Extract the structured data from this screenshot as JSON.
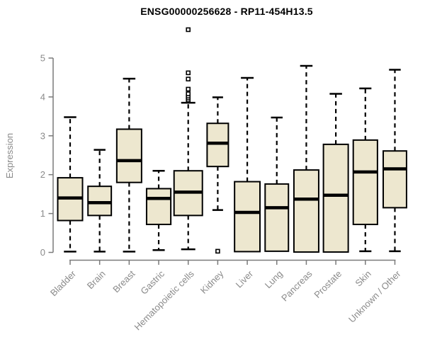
{
  "title": "ENSG00000256628 - RP11-454H13.5",
  "style": {
    "box_fill": "#EDE7CF",
    "box_stroke": "#000000",
    "median_color": "#000000",
    "whisker_color": "#000000",
    "axis_color": "#7a7a7a",
    "tick_label_color": "#8a8a8a",
    "title_color": "#000000",
    "background": "#ffffff"
  },
  "chart_data": {
    "type": "boxplot",
    "title": "ENSG00000256628 - RP11-454H13.5",
    "xlabel": "",
    "ylabel": "Expression",
    "ylim": [
      0,
      5
    ],
    "yticks": [
      0,
      1,
      2,
      3,
      4,
      5
    ],
    "grid": false,
    "legend": null,
    "categories": [
      "Bladder",
      "Brain",
      "Breast",
      "Gastric",
      "Hematopoietic cells",
      "Kidney",
      "Liver",
      "Lung",
      "Pancreas",
      "Prostate",
      "Skin",
      "Unknown / Other"
    ],
    "series": [
      {
        "name": "Bladder",
        "whisker_low": 0.02,
        "q1": 0.82,
        "median": 1.4,
        "q3": 1.92,
        "whisker_high": 3.48,
        "outliers": [],
        "box_width_ratio": 0.84
      },
      {
        "name": "Brain",
        "whisker_low": 0.02,
        "q1": 0.95,
        "median": 1.28,
        "q3": 1.7,
        "whisker_high": 2.64,
        "outliers": [],
        "box_width_ratio": 0.79
      },
      {
        "name": "Breast",
        "whisker_low": 0.02,
        "q1": 1.8,
        "median": 2.36,
        "q3": 3.17,
        "whisker_high": 4.47,
        "outliers": [],
        "box_width_ratio": 0.84
      },
      {
        "name": "Gastric",
        "whisker_low": 0.06,
        "q1": 0.72,
        "median": 1.39,
        "q3": 1.64,
        "whisker_high": 2.1,
        "outliers": [],
        "box_width_ratio": 0.82
      },
      {
        "name": "Hematopoietic cells",
        "whisker_low": 0.08,
        "q1": 0.95,
        "median": 1.55,
        "q3": 2.1,
        "whisker_high": 3.85,
        "outliers": [
          3.92,
          3.97,
          4.02,
          4.08,
          4.2,
          4.46,
          4.62,
          5.73
        ],
        "box_width_ratio": 0.96
      },
      {
        "name": "Kidney",
        "whisker_low": 1.09,
        "q1": 2.21,
        "median": 2.81,
        "q3": 3.32,
        "whisker_high": 3.99,
        "outliers": [
          0.03
        ],
        "box_width_ratio": 0.72
      },
      {
        "name": "Liver",
        "whisker_low": 0.02,
        "q1": 0.02,
        "median": 1.03,
        "q3": 1.82,
        "whisker_high": 4.49,
        "outliers": [],
        "box_width_ratio": 0.86
      },
      {
        "name": "Lung",
        "whisker_low": 0.03,
        "q1": 0.03,
        "median": 1.15,
        "q3": 1.76,
        "whisker_high": 3.47,
        "outliers": [],
        "box_width_ratio": 0.79
      },
      {
        "name": "Pancreas",
        "whisker_low": 0.01,
        "q1": 0.01,
        "median": 1.37,
        "q3": 2.12,
        "whisker_high": 4.8,
        "outliers": [],
        "box_width_ratio": 0.84
      },
      {
        "name": "Prostate",
        "whisker_low": 0.01,
        "q1": 0.01,
        "median": 1.47,
        "q3": 2.78,
        "whisker_high": 4.08,
        "outliers": [],
        "box_width_ratio": 0.84
      },
      {
        "name": "Skin",
        "whisker_low": 0.03,
        "q1": 0.72,
        "median": 2.07,
        "q3": 2.89,
        "whisker_high": 4.22,
        "outliers": [],
        "box_width_ratio": 0.82
      },
      {
        "name": "Unknown / Other",
        "whisker_low": 0.03,
        "q1": 1.15,
        "median": 2.15,
        "q3": 2.61,
        "whisker_high": 4.7,
        "outliers": [],
        "box_width_ratio": 0.79
      }
    ]
  }
}
